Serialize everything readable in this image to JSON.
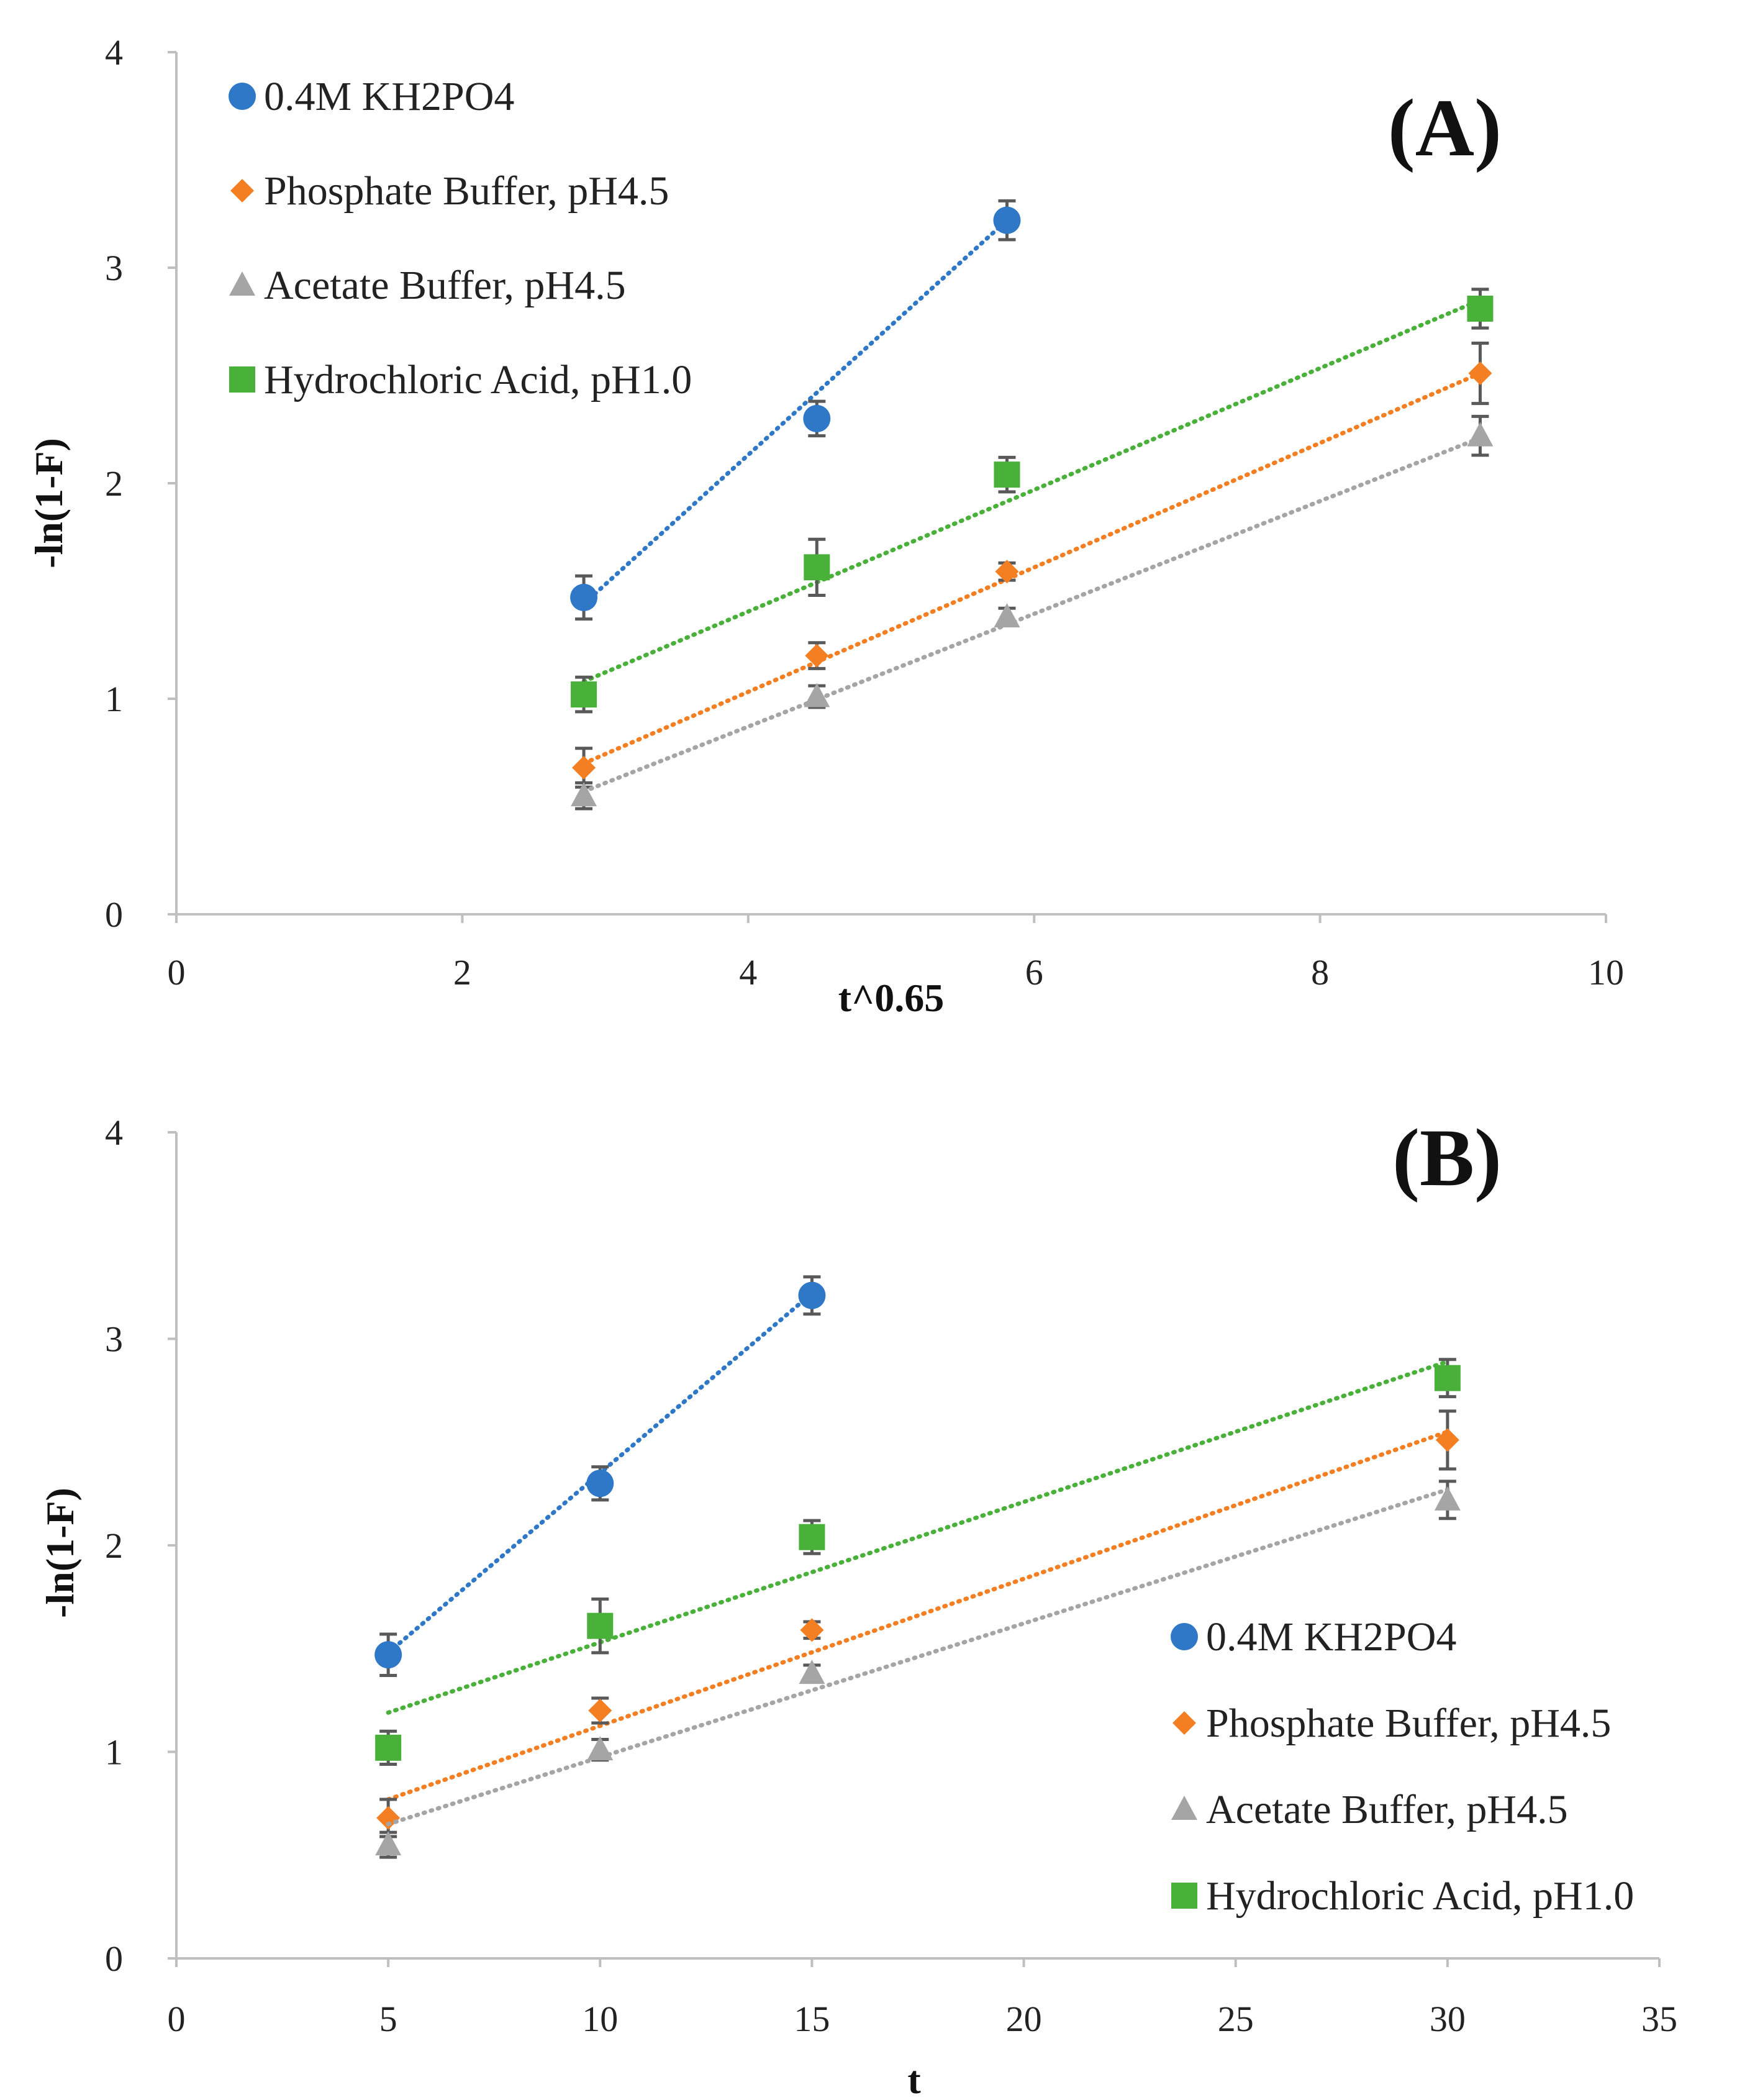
{
  "chart_data": [
    {
      "type": "scatter",
      "panel_label": "(A)",
      "title": "",
      "xlabel": "t^0.65",
      "ylabel": "-ln(1-F)",
      "xlim": [
        0,
        10
      ],
      "ylim": [
        0,
        4
      ],
      "xticks": [
        "0",
        "2",
        "4",
        "6",
        "8",
        "10"
      ],
      "yticks": [
        "0",
        "1",
        "2",
        "3",
        "4"
      ],
      "grid": false,
      "legend_position": "top-left",
      "series": [
        {
          "name": "0.4M KH2PO4",
          "marker": "circle",
          "color": "#2f78c8",
          "x": [
            2.85,
            4.48,
            5.81
          ],
          "y": [
            1.47,
            2.3,
            3.22
          ],
          "err": [
            0.1,
            0.08,
            0.09
          ],
          "trend": [
            [
              2.85,
              1.44
            ],
            [
              5.81,
              3.22
            ]
          ]
        },
        {
          "name": "Phosphate Buffer, pH4.5",
          "marker": "diamond",
          "color": "#f47e22",
          "x": [
            2.85,
            4.48,
            5.81,
            9.12
          ],
          "y": [
            0.68,
            1.2,
            1.59,
            2.51
          ],
          "err": [
            0.09,
            0.06,
            0.04,
            0.14
          ],
          "trend": [
            [
              2.85,
              0.7
            ],
            [
              9.12,
              2.51
            ]
          ]
        },
        {
          "name": "Acetate Buffer, pH4.5",
          "marker": "triangle",
          "color": "#a5a5a5",
          "x": [
            2.85,
            4.48,
            5.81,
            9.12
          ],
          "y": [
            0.55,
            1.01,
            1.38,
            2.22
          ],
          "err": [
            0.06,
            0.05,
            0.04,
            0.09
          ],
          "trend": [
            [
              2.85,
              0.57
            ],
            [
              9.12,
              2.21
            ]
          ]
        },
        {
          "name": "Hydrochloric Acid, pH1.0",
          "marker": "square",
          "color": "#49b13a",
          "x": [
            2.85,
            4.48,
            5.81,
            9.12
          ],
          "y": [
            1.02,
            1.61,
            2.04,
            2.81
          ],
          "err": [
            0.08,
            0.13,
            0.08,
            0.09
          ],
          "trend": [
            [
              2.85,
              1.08
            ],
            [
              9.12,
              2.85
            ]
          ]
        }
      ]
    },
    {
      "type": "scatter",
      "panel_label": "(B)",
      "title": "",
      "xlabel": "t",
      "ylabel": "-ln(1-F)",
      "xlim": [
        0,
        35
      ],
      "ylim": [
        0,
        4
      ],
      "xticks": [
        "0",
        "5",
        "10",
        "15",
        "20",
        "25",
        "30",
        "35"
      ],
      "yticks": [
        "0",
        "1",
        "2",
        "3",
        "4"
      ],
      "grid": false,
      "legend_position": "bottom-right",
      "series": [
        {
          "name": "0.4M KH2PO4",
          "marker": "circle",
          "color": "#2f78c8",
          "x": [
            5,
            10,
            15
          ],
          "y": [
            1.47,
            2.3,
            3.21
          ],
          "err": [
            0.1,
            0.08,
            0.09
          ],
          "trend": [
            [
              5,
              1.48
            ],
            [
              15,
              3.22
            ]
          ]
        },
        {
          "name": "Phosphate Buffer, pH4.5",
          "marker": "diamond",
          "color": "#f47e22",
          "x": [
            5,
            10,
            15,
            30
          ],
          "y": [
            0.68,
            1.2,
            1.59,
            2.51
          ],
          "err": [
            0.09,
            0.06,
            0.04,
            0.14
          ],
          "trend": [
            [
              5,
              0.77
            ],
            [
              30,
              2.55
            ]
          ]
        },
        {
          "name": "Acetate Buffer, pH4.5",
          "marker": "triangle",
          "color": "#a5a5a5",
          "x": [
            5,
            10,
            15,
            30
          ],
          "y": [
            0.55,
            1.01,
            1.38,
            2.22
          ],
          "err": [
            0.06,
            0.05,
            0.04,
            0.09
          ],
          "trend": [
            [
              5,
              0.65
            ],
            [
              30,
              2.27
            ]
          ]
        },
        {
          "name": "Hydrochloric Acid, pH1.0",
          "marker": "square",
          "color": "#49b13a",
          "x": [
            5,
            10,
            15,
            30
          ],
          "y": [
            1.02,
            1.61,
            2.04,
            2.81
          ],
          "err": [
            0.08,
            0.13,
            0.08,
            0.09
          ],
          "trend": [
            [
              5,
              1.19
            ],
            [
              30,
              2.89
            ]
          ]
        }
      ]
    }
  ]
}
